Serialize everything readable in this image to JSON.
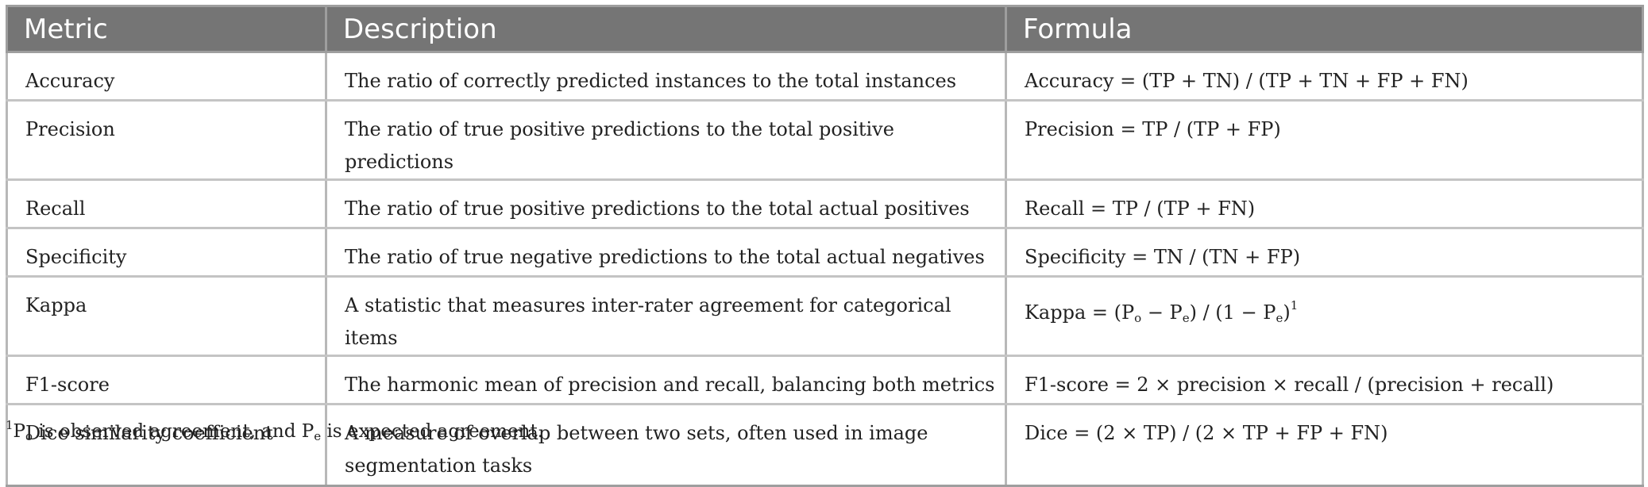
{
  "table": {
    "headers": [
      "Metric",
      "Description",
      "Formula"
    ],
    "rows": [
      {
        "metric": "Accuracy",
        "description": "The ratio of correctly predicted instances to the total instances",
        "formula": "Accuracy = (TP + TN) / (TP + TN + FP + FN)"
      },
      {
        "metric": "Precision",
        "description": "The ratio of true positive predictions to the total positive predictions",
        "formula": "Precision = TP / (TP + FP)"
      },
      {
        "metric": "Recall",
        "description": "The ratio of true positive predictions to the total actual positives",
        "formula": "Recall = TP / (TP + FN)"
      },
      {
        "metric": "Specificity",
        "description": "The ratio of true negative predictions to the total actual negatives",
        "formula": "Specificity = TN / (TN + FP)"
      },
      {
        "metric": "Kappa",
        "description": "A statistic that measures inter-rater agreement for categorical items",
        "formula": {
          "lead": "Kappa = (P",
          "sub1": "o",
          "mid1": " − P",
          "sub2": "e",
          "mid2": ") / (1 − P",
          "sub3": "e",
          "tail": ")",
          "footnote_ref": "1"
        }
      },
      {
        "metric": "F1-score",
        "description": "The harmonic mean of precision and recall, balancing both metrics",
        "formula": "F1-score = 2 × precision × recall / (precision + recall)"
      },
      {
        "metric": "Dice similarity coefficient",
        "description_line1": "A measure of overlap between two sets, often used in image",
        "description_line2": "segmentation tasks",
        "formula": "Dice = (2 × TP) / (2 × TP + FP + FN)"
      }
    ]
  },
  "footnote": {
    "mark": "1",
    "p": "P",
    "sub_o": "o",
    "text1": " is observed agreement, and P",
    "sub_e": "e",
    "text2": " is expected agreement."
  }
}
